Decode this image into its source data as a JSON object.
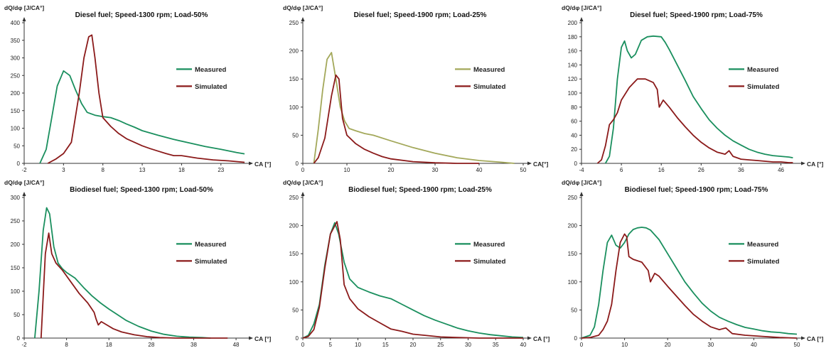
{
  "chart_data": [
    {
      "type": "line",
      "title": "Diesel fuel; Speed-1300 rpm; Load-50%",
      "ylabel": "dQ/dφ [J/CA°]",
      "xlabel": "CA [°]",
      "xlim": [
        -2,
        26
      ],
      "ylim": [
        0,
        400
      ],
      "xticks": [
        -2,
        3,
        8,
        13,
        18,
        23
      ],
      "yticks": [
        0,
        50,
        100,
        150,
        200,
        250,
        300,
        350,
        400
      ],
      "legend": "right",
      "series": [
        {
          "name": "Measured",
          "color": "#1a8f5e",
          "x": [
            0,
            0.8,
            1.5,
            2.2,
            3,
            3.8,
            4.5,
            5.3,
            6,
            7,
            8,
            9,
            10,
            11,
            12,
            13,
            15,
            17,
            19,
            21,
            23,
            25,
            26
          ],
          "y": [
            0,
            40,
            130,
            220,
            263,
            250,
            210,
            170,
            145,
            137,
            133,
            130,
            122,
            112,
            103,
            93,
            80,
            68,
            58,
            48,
            40,
            31,
            27
          ]
        },
        {
          "name": "Simulated",
          "color": "#8b1a1a",
          "x": [
            1,
            2,
            3,
            4,
            5,
            5.6,
            6.2,
            6.6,
            7,
            7.5,
            8,
            9,
            10,
            11,
            12,
            13,
            14,
            15,
            16,
            17,
            18,
            20,
            22,
            24,
            25,
            26
          ],
          "y": [
            0,
            12,
            28,
            60,
            200,
            300,
            360,
            365,
            300,
            200,
            130,
            105,
            85,
            70,
            60,
            50,
            42,
            35,
            28,
            22,
            22,
            15,
            10,
            7,
            5,
            3
          ]
        }
      ]
    },
    {
      "type": "line",
      "title": "Diesel fuel; Speed-1900 rpm; Load-25%",
      "ylabel": "dQ/dφ [J/CA°]",
      "xlabel": "CA[°]",
      "xlim": [
        0,
        50
      ],
      "ylim": [
        0,
        250
      ],
      "xticks": [
        0,
        10,
        20,
        30,
        40,
        50
      ],
      "yticks": [
        0,
        50,
        100,
        150,
        200,
        250
      ],
      "legend": "right",
      "series": [
        {
          "name": "Measured",
          "color": "#a3a85a",
          "x": [
            2.5,
            3.5,
            4.5,
            5.5,
            6.5,
            7.5,
            8.5,
            9.5,
            10.5,
            12,
            14,
            16,
            20,
            25,
            30,
            35,
            40,
            45,
            48
          ],
          "y": [
            0,
            60,
            130,
            185,
            197,
            150,
            100,
            75,
            62,
            58,
            53,
            50,
            40,
            28,
            18,
            10,
            5,
            2,
            0
          ]
        },
        {
          "name": "Simulated",
          "color": "#8b1a1a",
          "x": [
            2.5,
            3.5,
            5,
            6.5,
            7.5,
            8.2,
            9,
            10,
            12,
            14,
            16,
            18,
            20,
            25,
            30,
            35,
            40
          ],
          "y": [
            0,
            10,
            45,
            120,
            157,
            150,
            80,
            50,
            35,
            25,
            18,
            12,
            8,
            3,
            1,
            0,
            0
          ]
        }
      ]
    },
    {
      "type": "line",
      "title": "Diesel fuel; Speed-1900 rpm; Load-75%",
      "ylabel": "dQ/dφ [J/CA°]",
      "xlabel": "CA [°]",
      "xlim": [
        -4,
        50
      ],
      "ylim": [
        0,
        200
      ],
      "xticks": [
        -4,
        6,
        16,
        26,
        36,
        46
      ],
      "yticks": [
        0,
        20,
        40,
        60,
        80,
        100,
        120,
        140,
        160,
        180,
        200
      ],
      "legend": "right",
      "series": [
        {
          "name": "Measured",
          "color": "#1a8f5e",
          "x": [
            2,
            3,
            4,
            5,
            6,
            6.8,
            7.5,
            8.5,
            9.5,
            11,
            12.5,
            14,
            16,
            17,
            18,
            20,
            22,
            24,
            26,
            28,
            30,
            32,
            34,
            36,
            38,
            40,
            42,
            44,
            46,
            48,
            49
          ],
          "y": [
            0,
            10,
            50,
            120,
            165,
            174,
            160,
            150,
            155,
            175,
            180,
            181,
            180,
            172,
            162,
            140,
            118,
            95,
            78,
            62,
            50,
            40,
            32,
            26,
            20,
            16,
            13,
            11,
            10,
            9,
            8
          ]
        },
        {
          "name": "Simulated",
          "color": "#8b1a1a",
          "x": [
            0,
            1,
            2,
            3,
            4,
            5,
            6,
            8,
            10,
            12,
            14,
            15,
            15.5,
            16.5,
            18,
            20,
            22,
            24,
            26,
            28,
            30,
            32,
            33,
            34,
            35,
            36,
            38,
            40,
            42,
            44,
            46,
            48,
            49
          ],
          "y": [
            0,
            5,
            25,
            55,
            62,
            72,
            90,
            108,
            120,
            120,
            115,
            105,
            80,
            90,
            80,
            65,
            52,
            40,
            30,
            22,
            16,
            13,
            18,
            10,
            8,
            6,
            5,
            4,
            3,
            2,
            2,
            1,
            1
          ]
        }
      ]
    },
    {
      "type": "line",
      "title": "Biodiesel fuel; Speed-1300 rpm; Load-50%",
      "ylabel": "dQ/dφ [J/CA°]",
      "xlabel": "CA [°]",
      "xlim": [
        -2,
        50
      ],
      "ylim": [
        0,
        300
      ],
      "xticks": [
        -2,
        8,
        18,
        28,
        38,
        48
      ],
      "yticks": [
        0,
        50,
        100,
        150,
        200,
        250,
        300
      ],
      "legend": "right",
      "series": [
        {
          "name": "Measured",
          "color": "#1a8f5e",
          "x": [
            0.5,
            1.5,
            2.5,
            3.3,
            4,
            5,
            6,
            7,
            8,
            10,
            12,
            14,
            16,
            18,
            20,
            22,
            25,
            28,
            31,
            34,
            37,
            40,
            42
          ],
          "y": [
            0,
            100,
            230,
            278,
            265,
            195,
            160,
            148,
            140,
            128,
            108,
            90,
            75,
            62,
            50,
            38,
            25,
            15,
            8,
            4,
            2,
            1,
            0
          ]
        },
        {
          "name": "Simulated",
          "color": "#8b1a1a",
          "x": [
            2,
            3,
            3.8,
            4.5,
            5.5,
            7,
            9,
            11,
            13,
            14.5,
            15,
            15.5,
            16.2,
            17.5,
            19,
            21,
            24,
            27,
            30,
            34,
            38,
            42,
            46
          ],
          "y": [
            0,
            180,
            224,
            180,
            160,
            145,
            120,
            95,
            75,
            55,
            40,
            28,
            35,
            28,
            20,
            13,
            7,
            3,
            1,
            0,
            0,
            0,
            0
          ]
        }
      ]
    },
    {
      "type": "line",
      "title": "Biodiesel fuel; Speed-1900 rpm; Load-25%",
      "ylabel": "dQ/dφ [J/CA°]",
      "xlabel": "CA [°]",
      "xlim": [
        0,
        40
      ],
      "ylim": [
        0,
        250
      ],
      "xticks": [
        0,
        5,
        10,
        15,
        20,
        25,
        30,
        35,
        40
      ],
      "yticks": [
        0,
        50,
        100,
        150,
        200,
        250
      ],
      "legend": "right",
      "series": [
        {
          "name": "Measured",
          "color": "#1a8f5e",
          "x": [
            0,
            1,
            2,
            3,
            4,
            5,
            5.8,
            6.5,
            7.5,
            8.5,
            10,
            12,
            14,
            16,
            18,
            20,
            22,
            24,
            26,
            28,
            30,
            32,
            34,
            36,
            38,
            40
          ],
          "y": [
            0,
            5,
            25,
            60,
            130,
            185,
            205,
            185,
            135,
            105,
            90,
            82,
            75,
            70,
            60,
            50,
            40,
            32,
            25,
            18,
            13,
            9,
            6,
            4,
            2,
            1
          ]
        },
        {
          "name": "Simulated",
          "color": "#8b1a1a",
          "x": [
            0,
            1,
            2,
            3,
            4,
            5,
            6.2,
            6.8,
            7.5,
            8.5,
            10,
            12,
            14,
            16,
            18,
            20,
            22,
            25,
            28,
            32,
            36,
            40
          ],
          "y": [
            0,
            3,
            15,
            55,
            125,
            185,
            207,
            175,
            95,
            70,
            52,
            38,
            27,
            16,
            12,
            7,
            5,
            2,
            1,
            0,
            0,
            0
          ]
        }
      ]
    },
    {
      "type": "line",
      "title": "Biodiesel fuel; Speed-1900 rpm; Load-75%",
      "ylabel": "dQ/dφ [J/CA°]",
      "xlabel": "CA [°]",
      "xlim": [
        0,
        50
      ],
      "ylim": [
        0,
        250
      ],
      "xticks": [
        0,
        10,
        20,
        30,
        40,
        50
      ],
      "yticks": [
        0,
        50,
        100,
        150,
        200,
        250
      ],
      "legend": "right",
      "series": [
        {
          "name": "Measured",
          "color": "#1a8f5e",
          "x": [
            0,
            2,
            3,
            4,
            5,
            6,
            7,
            8,
            9,
            10,
            11,
            12,
            13,
            14,
            15,
            16,
            18,
            20,
            22,
            24,
            26,
            28,
            30,
            32,
            34,
            36,
            38,
            40,
            42,
            44,
            46,
            48,
            50
          ],
          "y": [
            0,
            5,
            20,
            60,
            120,
            170,
            183,
            165,
            160,
            170,
            185,
            193,
            196,
            197,
            196,
            192,
            175,
            150,
            125,
            100,
            80,
            62,
            48,
            37,
            30,
            24,
            19,
            16,
            13,
            11,
            10,
            8,
            7
          ]
        },
        {
          "name": "Simulated",
          "color": "#8b1a1a",
          "x": [
            0,
            2,
            4,
            5,
            6,
            7,
            8,
            9,
            10,
            10.5,
            11,
            12,
            14,
            15.5,
            16,
            17,
            18,
            20,
            22,
            24,
            26,
            28,
            30,
            32,
            33.5,
            35,
            38,
            42,
            46,
            50
          ],
          "y": [
            0,
            1,
            5,
            15,
            30,
            60,
            120,
            170,
            185,
            180,
            145,
            140,
            135,
            120,
            100,
            115,
            110,
            92,
            75,
            58,
            42,
            30,
            20,
            15,
            18,
            8,
            5,
            3,
            1,
            0
          ]
        }
      ]
    }
  ]
}
